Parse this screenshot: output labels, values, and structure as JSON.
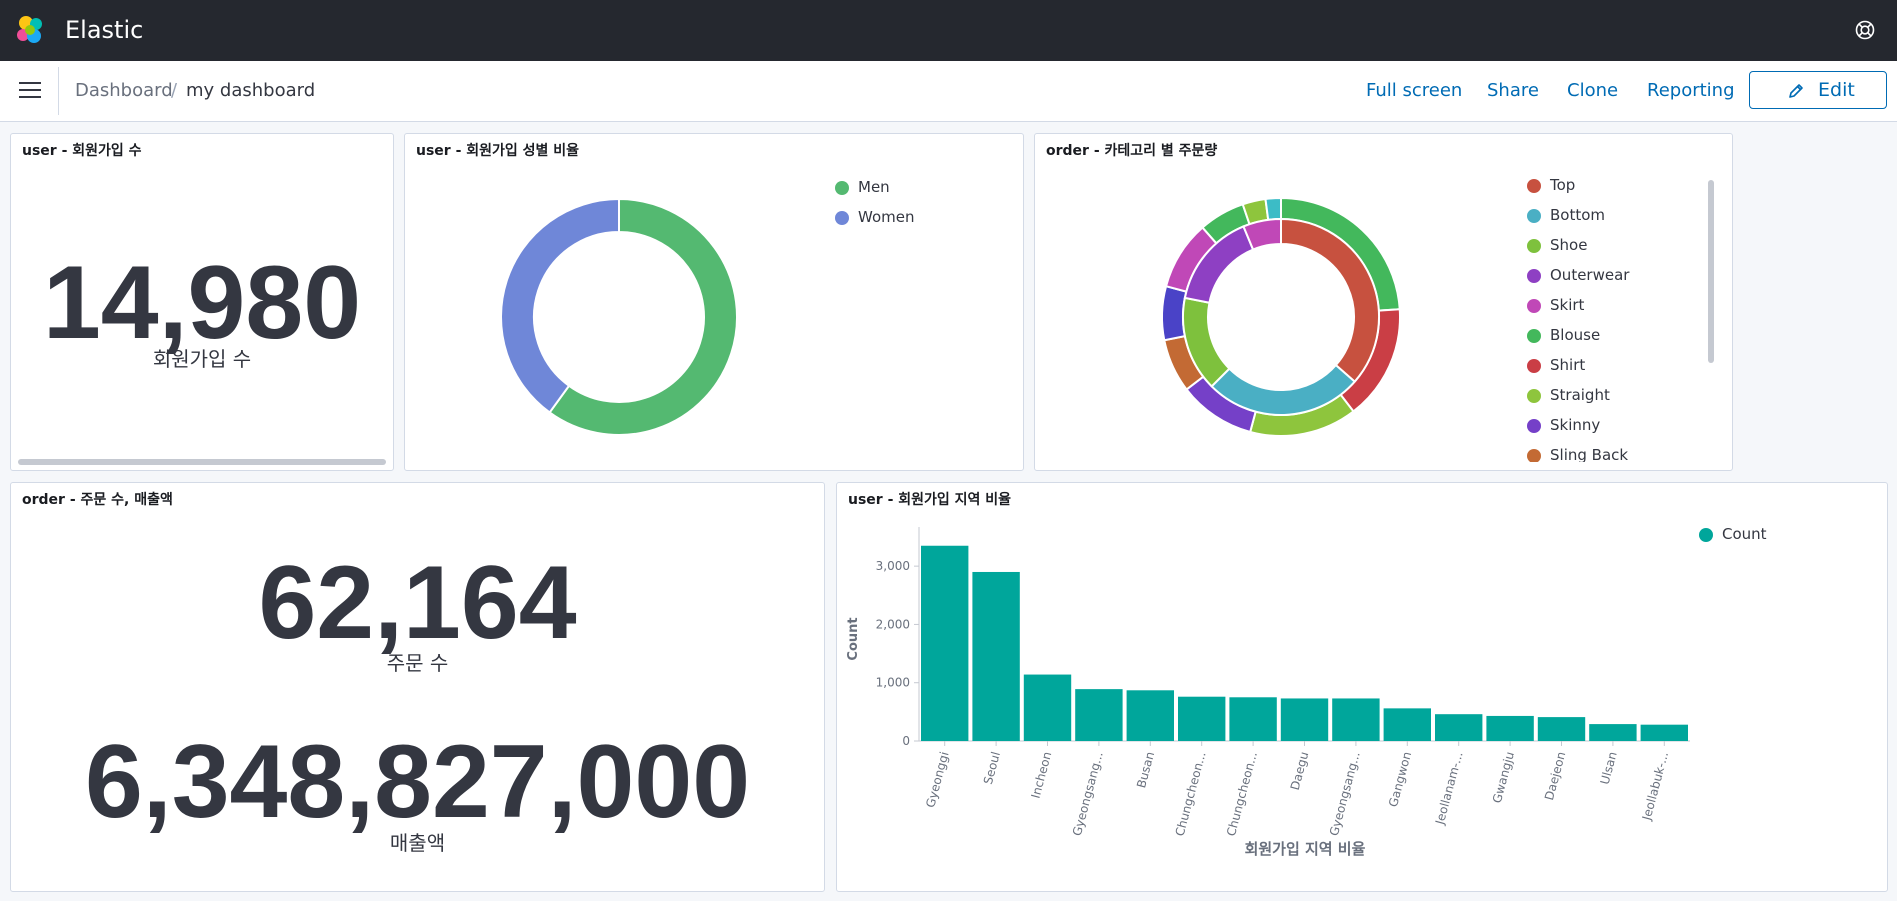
{
  "header": {
    "app_title": "Elastic"
  },
  "breadcrumb": {
    "root": "Dashboard",
    "separator": "/",
    "current": "my dashboard"
  },
  "nav_actions": {
    "full_screen": "Full screen",
    "share": "Share",
    "clone": "Clone",
    "reporting": "Reporting",
    "edit": "Edit"
  },
  "panels": {
    "signups": {
      "title": "user - 회원가입 수",
      "value": "14,980",
      "label": "회원가입 수"
    },
    "gender": {
      "title": "user - 회원가입 성별 비율"
    },
    "category": {
      "title": "order - 카테고리 별 주문량"
    },
    "orders": {
      "title": "order - 주문 수, 매출액",
      "orders_value": "62,164",
      "orders_label": "주문 수",
      "sales_value": "6,348,827,000",
      "sales_label": "매출액"
    },
    "region": {
      "title": "user - 회원가입 지역 비율"
    }
  },
  "colors": {
    "men": "#54b971",
    "women": "#6f87d8",
    "teal": "#00a69b",
    "top": "#c7513f",
    "bottom": "#4aafc4",
    "shoe": "#7ec13d",
    "outerwear": "#8e40c3",
    "skirt": "#c048b7",
    "blouse": "#43b85c",
    "shirt": "#ca3e45",
    "straight": "#8ec53d",
    "skinny": "#7540c8",
    "sling_back": "#c36a34",
    "indigo": "#4a43c7",
    "cyan": "#3cbcc6"
  },
  "chart_data": [
    {
      "type": "pie",
      "title": "user - 회원가입 성별 비율",
      "donut": true,
      "legend_position": "top-right",
      "slices": [
        {
          "name": "Men",
          "value": 60,
          "color": "#54b971"
        },
        {
          "name": "Women",
          "value": 40,
          "color": "#6f87d8"
        }
      ]
    },
    {
      "type": "pie",
      "title": "order - 카테고리 별 주문량",
      "donut": true,
      "legend_position": "top-right",
      "legend": [
        {
          "name": "Top",
          "color": "#c7513f"
        },
        {
          "name": "Bottom",
          "color": "#4aafc4"
        },
        {
          "name": "Shoe",
          "color": "#7ec13d"
        },
        {
          "name": "Outerwear",
          "color": "#8e40c3"
        },
        {
          "name": "Skirt",
          "color": "#c048b7"
        },
        {
          "name": "Blouse",
          "color": "#43b85c"
        },
        {
          "name": "Shirt",
          "color": "#ca3e45"
        },
        {
          "name": "Straight",
          "color": "#8ec53d"
        },
        {
          "name": "Skinny",
          "color": "#7540c8"
        },
        {
          "name": "Sling Back",
          "color": "#c36a34"
        }
      ],
      "inner_ring": [
        {
          "name": "Top",
          "value": 35,
          "color": "#c7513f"
        },
        {
          "name": "Bottom",
          "value": 25,
          "color": "#4aafc4"
        },
        {
          "name": "Shoe",
          "value": 15,
          "color": "#7ec13d"
        },
        {
          "name": "Outerwear",
          "value": 15,
          "color": "#8e40c3"
        },
        {
          "name": "Skirt",
          "value": 6,
          "color": "#c048b7"
        }
      ],
      "outer_ring": [
        {
          "value": 23,
          "color": "#43b85c"
        },
        {
          "value": 15,
          "color": "#ca3e45"
        },
        {
          "value": 14,
          "color": "#8ec53d"
        },
        {
          "value": 10,
          "color": "#7540c8"
        },
        {
          "value": 7,
          "color": "#c36a34"
        },
        {
          "value": 7,
          "color": "#4a43c7"
        },
        {
          "value": 9,
          "color": "#c048b7"
        },
        {
          "value": 6,
          "color": "#43b85c"
        },
        {
          "value": 3,
          "color": "#8ec53d"
        },
        {
          "value": 2,
          "color": "#3cbcc6"
        }
      ]
    },
    {
      "type": "bar",
      "title": "user - 회원가입 지역 비율",
      "xlabel": "회원가입 지역 비율",
      "ylabel": "Count",
      "ylim": [
        0,
        3500
      ],
      "yticks": [
        0,
        1000,
        2000,
        3000
      ],
      "ytick_labels": [
        "0",
        "1,000",
        "2,000",
        "3,000"
      ],
      "legend_position": "top-right",
      "series": [
        {
          "name": "Count",
          "color": "#00a69b"
        }
      ],
      "categories": [
        "Gyeonggi",
        "Seoul",
        "Incheon",
        "Gyeongsang...",
        "Busan",
        "Chungcheon...",
        "Chungcheon...",
        "Daegu",
        "Gyeongsang...",
        "Gangwon",
        "Jeollanam-...",
        "Gwangju",
        "Daejeon",
        "Ulsan",
        "Jeollabuk-..."
      ],
      "values": [
        3350,
        2900,
        1140,
        890,
        870,
        760,
        750,
        730,
        730,
        560,
        460,
        430,
        410,
        290,
        280
      ]
    }
  ]
}
